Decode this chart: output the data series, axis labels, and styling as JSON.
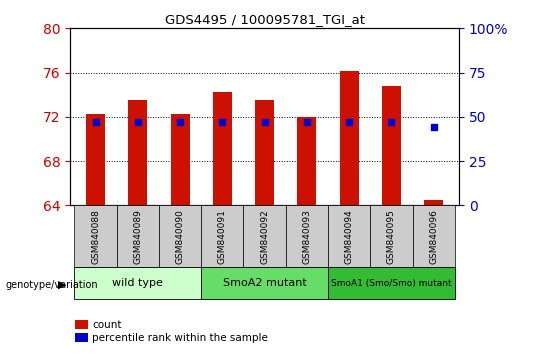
{
  "title": "GDS4495 / 100095781_TGI_at",
  "samples": [
    "GSM840088",
    "GSM840089",
    "GSM840090",
    "GSM840091",
    "GSM840092",
    "GSM840093",
    "GSM840094",
    "GSM840095",
    "GSM840096"
  ],
  "red_values": [
    72.3,
    73.5,
    72.3,
    74.2,
    73.5,
    72.0,
    76.1,
    74.8,
    64.5
  ],
  "blue_pct": [
    47,
    47,
    47,
    47,
    47,
    47,
    47,
    47,
    44
  ],
  "ymin": 64,
  "ymax": 80,
  "yticks": [
    64,
    68,
    72,
    76,
    80
  ],
  "right_yticks": [
    0,
    25,
    50,
    75,
    100
  ],
  "bar_color": "#cc1100",
  "blue_color": "#0000cc",
  "bar_width": 0.45,
  "tick_color": "#cc0000",
  "right_tick_color": "#0000cc",
  "grid_style": "dotted",
  "grid_color": "#000000",
  "groups": [
    {
      "label": "wild type",
      "start": 0,
      "end": 3,
      "color": "#ccffcc"
    },
    {
      "label": "SmoA2 mutant",
      "start": 3,
      "end": 6,
      "color": "#66dd66"
    },
    {
      "label": "SmoA1 (Smo/Smo) mutant",
      "start": 6,
      "end": 9,
      "color": "#33bb33"
    }
  ],
  "sample_box_color": "#cccccc",
  "legend_count_label": "count",
  "legend_pct_label": "percentile rank within the sample",
  "arrow_label": "genotype/variation"
}
